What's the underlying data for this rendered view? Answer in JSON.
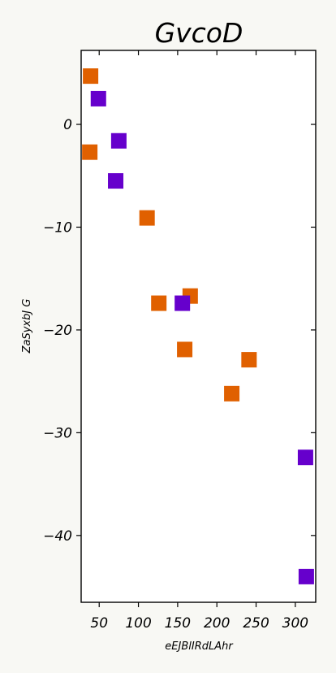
{
  "chart_data": {
    "type": "scatter",
    "title": "GvcoD",
    "xlabel": "eEJBlIRdLAhr",
    "ylabel": "ZaSyxbJ G",
    "xlim": [
      27,
      326
    ],
    "ylim": [
      -46.5,
      7.2
    ],
    "xticks": [
      50,
      100,
      150,
      200,
      250,
      300
    ],
    "yticks": [
      0,
      -10,
      -20,
      -30,
      -40
    ],
    "xtick_labels": [
      "50",
      "100",
      "150",
      "200",
      "250",
      "300"
    ],
    "ytick_labels": [
      "0",
      "−10",
      "−20",
      "−30",
      "−40"
    ],
    "grid": false,
    "legend": "none",
    "marker": "square",
    "series": [
      {
        "color": "#e06000",
        "points": [
          {
            "x": 39,
            "y": 4.7
          },
          {
            "x": 38,
            "y": -2.7
          },
          {
            "x": 111,
            "y": -9.1
          },
          {
            "x": 126,
            "y": -17.4
          },
          {
            "x": 166,
            "y": -16.7
          },
          {
            "x": 159,
            "y": -21.9
          },
          {
            "x": 241,
            "y": -22.9
          },
          {
            "x": 219,
            "y": -26.2
          }
        ]
      },
      {
        "color": "#6600cc",
        "points": [
          {
            "x": 49,
            "y": 2.5
          },
          {
            "x": 75,
            "y": -1.6
          },
          {
            "x": 71,
            "y": -5.5
          },
          {
            "x": 156,
            "y": -17.4
          },
          {
            "x": 313,
            "y": -32.4
          },
          {
            "x": 314,
            "y": -44.0
          }
        ]
      }
    ]
  }
}
